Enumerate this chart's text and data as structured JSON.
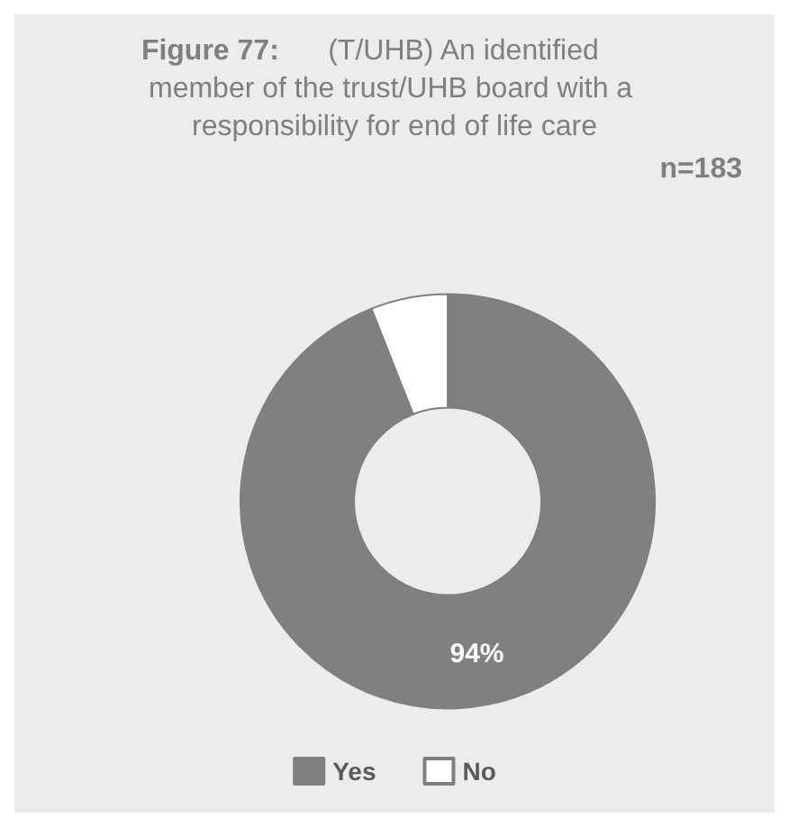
{
  "chart_data": {
    "type": "donut",
    "title": "Figure 77: (T/UHB) An identified member of the trust/UHB board with a responsibility for end of life care",
    "categories": [
      "Yes",
      "No"
    ],
    "values": [
      94,
      6
    ],
    "colors": [
      "#808080",
      "#ffffff"
    ],
    "value_labels": [
      "94%",
      null
    ],
    "annotations": [
      "n=183"
    ],
    "legend": "bottom"
  }
}
